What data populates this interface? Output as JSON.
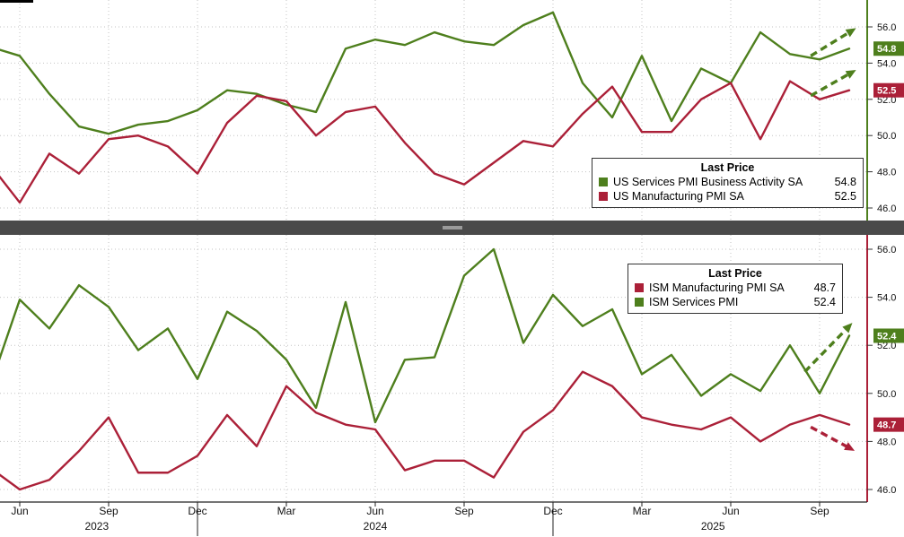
{
  "colors": {
    "green": "#4e7f1d",
    "red": "#ab2038",
    "grid": "#c3c3c3",
    "axis_text": "#111111",
    "divider": "#4a4a4a",
    "background": "#ffffff"
  },
  "timeline": {
    "months_start": "May 2023",
    "months_end": "Oct 2025",
    "x_ticks": [
      {
        "label": "Jun",
        "index": 1,
        "year_boundary": false
      },
      {
        "label": "Sep",
        "index": 4,
        "year_boundary": false
      },
      {
        "label": "Dec",
        "index": 7,
        "year_boundary": true
      },
      {
        "label": "Mar",
        "index": 10,
        "year_boundary": false
      },
      {
        "label": "Jun",
        "index": 13,
        "year_boundary": false
      },
      {
        "label": "Sep",
        "index": 16,
        "year_boundary": false
      },
      {
        "label": "Dec",
        "index": 19,
        "year_boundary": true
      },
      {
        "label": "Mar",
        "index": 22,
        "year_boundary": false
      },
      {
        "label": "Jun",
        "index": 25,
        "year_boundary": false
      },
      {
        "label": "Sep",
        "index": 28,
        "year_boundary": false
      }
    ],
    "year_labels": [
      {
        "label": "2023",
        "index": 3.6
      },
      {
        "label": "2024",
        "index": 13.0
      },
      {
        "label": "2025",
        "index": 24.4
      }
    ]
  },
  "chart_data": [
    {
      "type": "line",
      "panel": "top",
      "x_frequency": "monthly",
      "ylim": [
        45.4,
        57.5
      ],
      "yticks": [
        46,
        48,
        50,
        52,
        54,
        56
      ],
      "grid": true,
      "legend": {
        "title": "Last Price",
        "rows": [
          {
            "label": "US Services PMI Business Activity SA",
            "value": "54.8",
            "color": "green"
          },
          {
            "label": "US Manufacturing PMI SA",
            "value": "52.5",
            "color": "red"
          }
        ]
      },
      "series": [
        {
          "name": "US Services PMI Business Activity SA",
          "color": "green",
          "last_price": 54.8,
          "values": [
            54.9,
            54.4,
            52.3,
            50.5,
            50.1,
            50.6,
            50.8,
            51.4,
            52.5,
            52.3,
            51.7,
            51.3,
            54.8,
            55.3,
            55.0,
            55.7,
            55.2,
            55.0,
            56.1,
            56.8,
            52.9,
            51.0,
            54.4,
            50.8,
            53.7,
            52.9,
            55.7,
            54.5,
            54.2,
            54.8
          ]
        },
        {
          "name": "US Manufacturing PMI SA",
          "color": "red",
          "last_price": 52.5,
          "values": [
            48.4,
            46.3,
            49.0,
            47.9,
            49.8,
            50.0,
            49.4,
            47.9,
            50.7,
            52.2,
            51.9,
            50.0,
            51.3,
            51.6,
            49.6,
            47.9,
            47.3,
            48.5,
            49.7,
            49.4,
            51.2,
            52.7,
            50.2,
            50.2,
            52.0,
            52.9,
            49.8,
            53.0,
            52.0,
            52.5
          ]
        }
      ],
      "annotations": [
        {
          "type": "trend-arrow",
          "direction": "up",
          "color": "green",
          "from": [
            27.7,
            54.4
          ],
          "to": [
            29.1,
            55.8
          ]
        },
        {
          "type": "trend-arrow",
          "direction": "up",
          "color": "green",
          "from": [
            27.7,
            52.2
          ],
          "to": [
            29.1,
            53.5
          ]
        }
      ]
    },
    {
      "type": "line",
      "panel": "bottom",
      "x_frequency": "monthly",
      "ylim": [
        45.5,
        56.6
      ],
      "yticks": [
        46,
        48,
        50,
        52,
        54,
        56
      ],
      "grid": true,
      "legend": {
        "title": "Last Price",
        "rows": [
          {
            "label": "ISM Manufacturing PMI SA",
            "value": "48.7",
            "color": "red"
          },
          {
            "label": "ISM Services PMI",
            "value": "52.4",
            "color": "green"
          }
        ]
      },
      "series": [
        {
          "name": "ISM Manufacturing PMI SA",
          "color": "red",
          "last_price": 48.7,
          "values": [
            46.9,
            46.0,
            46.4,
            47.6,
            49.0,
            46.7,
            46.7,
            47.4,
            49.1,
            47.8,
            50.3,
            49.2,
            48.7,
            48.5,
            46.8,
            47.2,
            47.2,
            46.5,
            48.4,
            49.3,
            50.9,
            50.3,
            49.0,
            48.7,
            48.5,
            49.0,
            48.0,
            48.7,
            49.1,
            48.7
          ]
        },
        {
          "name": "ISM Services PMI",
          "color": "green",
          "last_price": 52.4,
          "values": [
            50.3,
            53.9,
            52.7,
            54.5,
            53.6,
            51.8,
            52.7,
            50.6,
            53.4,
            52.6,
            51.4,
            49.4,
            53.8,
            48.8,
            51.4,
            51.5,
            54.9,
            56.0,
            52.1,
            54.1,
            52.8,
            53.5,
            50.8,
            51.6,
            49.9,
            50.8,
            50.1,
            52.0,
            50.0,
            52.4
          ]
        }
      ],
      "annotations": [
        {
          "type": "trend-arrow",
          "direction": "up",
          "color": "green",
          "from": [
            27.5,
            50.9
          ],
          "to": [
            29.0,
            52.8
          ]
        },
        {
          "type": "trend-arrow",
          "direction": "down",
          "color": "red",
          "from": [
            27.7,
            48.6
          ],
          "to": [
            29.05,
            47.7
          ]
        }
      ]
    }
  ]
}
